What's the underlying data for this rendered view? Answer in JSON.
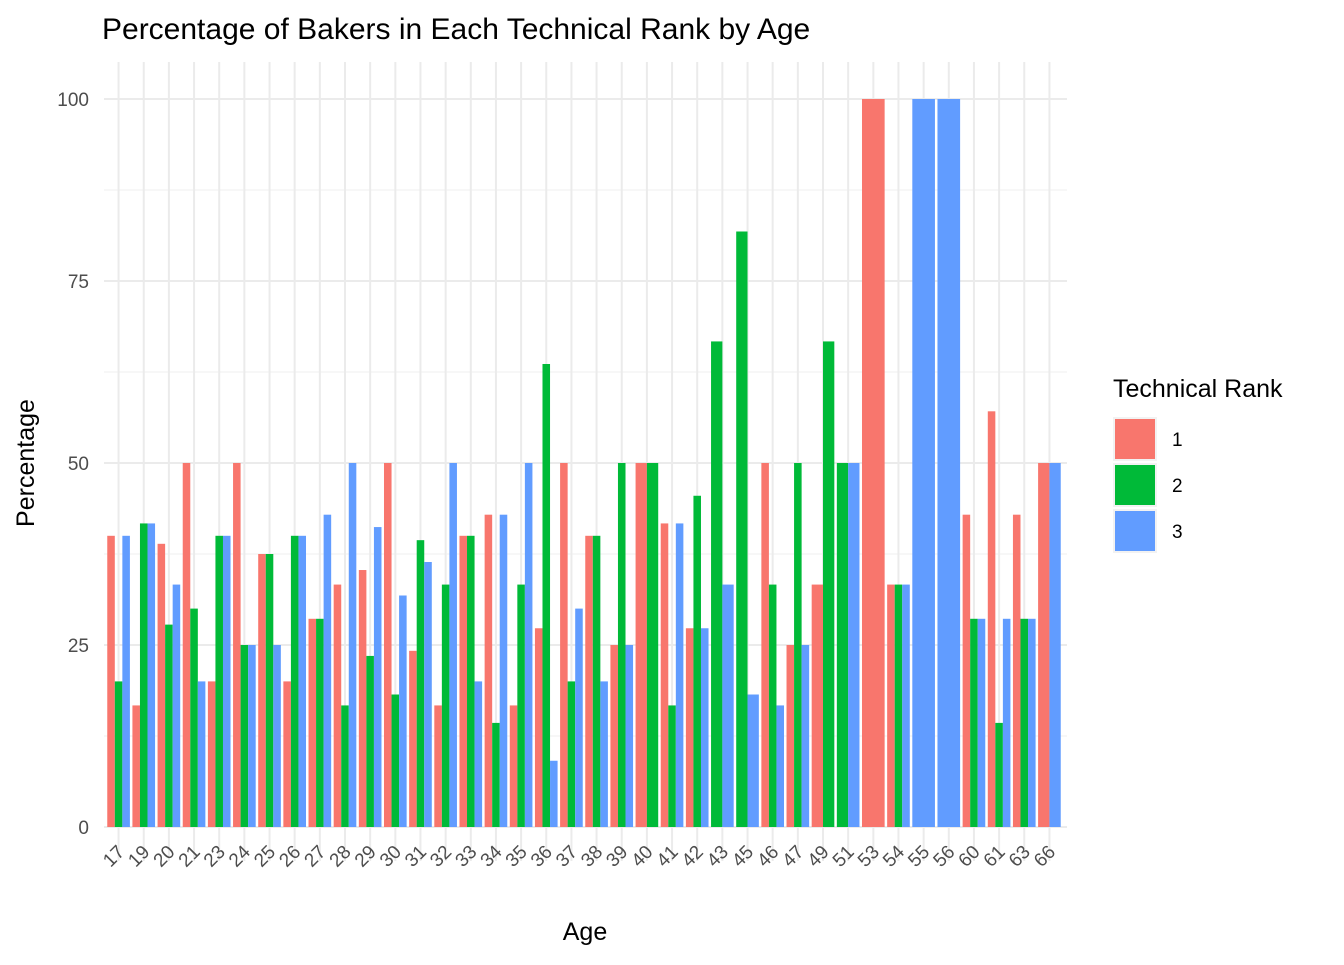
{
  "chart_data": {
    "type": "bar",
    "title": "Percentage of Bakers in Each Technical Rank by Age",
    "xlabel": "Age",
    "ylabel": "Percentage",
    "ylim": [
      0,
      100
    ],
    "y_ticks": [
      0,
      25,
      50,
      75,
      100
    ],
    "grid": true,
    "legend": {
      "title": "Technical Rank",
      "position": "right"
    },
    "categories": [
      "17",
      "19",
      "20",
      "21",
      "23",
      "24",
      "25",
      "26",
      "27",
      "28",
      "29",
      "30",
      "31",
      "32",
      "33",
      "34",
      "35",
      "36",
      "37",
      "38",
      "39",
      "40",
      "41",
      "42",
      "43",
      "45",
      "46",
      "47",
      "49",
      "51",
      "53",
      "54",
      "55",
      "56",
      "60",
      "61",
      "63",
      "66"
    ],
    "series": [
      {
        "name": "1",
        "color": "#F8766D",
        "values": [
          40,
          16.7,
          38.9,
          50,
          20,
          50,
          37.5,
          20,
          28.6,
          33.3,
          35.3,
          50,
          24.2,
          16.7,
          40,
          42.9,
          16.7,
          27.3,
          50,
          40,
          25,
          50,
          41.7,
          27.3,
          null,
          null,
          50,
          25,
          33.3,
          null,
          100,
          33.3,
          null,
          null,
          42.9,
          57.1,
          42.9,
          50
        ]
      },
      {
        "name": "2",
        "color": "#00BA38",
        "values": [
          20,
          41.7,
          27.8,
          30,
          40,
          25,
          37.5,
          40,
          28.6,
          16.7,
          23.5,
          18.2,
          39.4,
          33.3,
          40,
          14.3,
          33.3,
          63.6,
          20,
          40,
          50,
          50,
          16.7,
          45.5,
          66.7,
          81.8,
          33.3,
          50,
          66.7,
          50,
          null,
          33.3,
          null,
          null,
          28.6,
          14.3,
          28.6,
          null
        ]
      },
      {
        "name": "3",
        "color": "#619CFF",
        "values": [
          40,
          41.7,
          33.3,
          20,
          40,
          25,
          25,
          40,
          42.9,
          50,
          41.2,
          31.8,
          36.4,
          50,
          20,
          42.9,
          50,
          9.1,
          30,
          20,
          25,
          null,
          41.7,
          27.3,
          33.3,
          18.2,
          16.7,
          25,
          null,
          50,
          null,
          33.3,
          100,
          100,
          28.6,
          28.6,
          28.6,
          50
        ]
      }
    ]
  }
}
